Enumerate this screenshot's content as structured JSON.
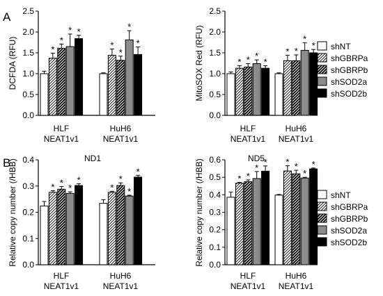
{
  "panel_letters": [
    "A",
    "B"
  ],
  "legend_entries": [
    {
      "label": "shNT",
      "fill": "white"
    },
    {
      "label": "shGBRPa",
      "fill": "hatch"
    },
    {
      "label": "shGBRPb",
      "fill": "hatch-dense"
    },
    {
      "label": "shSOD2a",
      "fill": "gray"
    },
    {
      "label": "shSOD2b",
      "fill": "black"
    }
  ],
  "colors": {
    "gray": "#8c8c8c",
    "black": "#000000",
    "white": "#ffffff"
  },
  "chart_data": [
    {
      "type": "bar",
      "title": "",
      "ylabel": "DCFDA (RFU)",
      "categories": [
        "HLF\nNEAT1v1",
        "HuH6\nNEAT1v1"
      ],
      "ylim": [
        0,
        2.5
      ],
      "yticks": [
        "0.0",
        "0.5",
        "1.0",
        "1.5",
        "2.0",
        "2.5"
      ],
      "series": [
        {
          "name": "shNT",
          "values": [
            1.0,
            1.0
          ],
          "errors": [
            0.06,
            0.02
          ],
          "sig": [
            false,
            false
          ]
        },
        {
          "name": "shGBRPa",
          "values": [
            1.37,
            1.44
          ],
          "errors": [
            0.12,
            0.15
          ],
          "sig": [
            true,
            true
          ]
        },
        {
          "name": "shGBRPb",
          "values": [
            1.61,
            1.32
          ],
          "errors": [
            0.1,
            0.1
          ],
          "sig": [
            true,
            true
          ]
        },
        {
          "name": "shSOD2a",
          "values": [
            1.65,
            1.81
          ],
          "errors": [
            0.3,
            0.22
          ],
          "sig": [
            true,
            true
          ]
        },
        {
          "name": "shSOD2b",
          "values": [
            1.84,
            1.46
          ],
          "errors": [
            0.08,
            0.18
          ],
          "sig": [
            true,
            true
          ]
        }
      ]
    },
    {
      "type": "bar",
      "title": "",
      "ylabel": "MitoSOX Red (RFU)",
      "categories": [
        "HLF\nNEAT1v1",
        "HuH6\nNEAT1v1"
      ],
      "ylim": [
        0,
        2.5
      ],
      "yticks": [
        "0.0",
        "0.5",
        "1.0",
        "1.5",
        "2.0",
        "2.5"
      ],
      "series": [
        {
          "name": "shNT",
          "values": [
            1.0,
            1.0
          ],
          "errors": [
            0.04,
            0.02
          ],
          "sig": [
            false,
            false
          ]
        },
        {
          "name": "shGBRPa",
          "values": [
            1.13,
            1.31
          ],
          "errors": [
            0.06,
            0.13
          ],
          "sig": [
            true,
            true
          ]
        },
        {
          "name": "shGBRPb",
          "values": [
            1.16,
            1.31
          ],
          "errors": [
            0.08,
            0.14
          ],
          "sig": [
            true,
            true
          ]
        },
        {
          "name": "shSOD2a",
          "values": [
            1.24,
            1.56
          ],
          "errors": [
            0.09,
            0.18
          ],
          "sig": [
            true,
            true
          ]
        },
        {
          "name": "shSOD2b",
          "values": [
            1.13,
            1.5
          ],
          "errors": [
            0.06,
            0.08
          ],
          "sig": [
            true,
            true
          ]
        }
      ]
    },
    {
      "type": "bar",
      "title": "ND1",
      "ylabel": "Relative copy number (/HBB)",
      "categories": [
        "HLF\nNEAT1v1",
        "HuH6\nNEAT1v1"
      ],
      "ylim": [
        0,
        0.4
      ],
      "yticks": [
        "0.0",
        "0.1",
        "0.2",
        "0.3",
        "0.4"
      ],
      "series": [
        {
          "name": "shNT",
          "values": [
            0.224,
            0.234
          ],
          "errors": [
            0.017,
            0.014
          ],
          "sig": [
            false,
            false
          ]
        },
        {
          "name": "shGBRPa",
          "values": [
            0.276,
            0.276
          ],
          "errors": [
            0.006,
            0.004
          ],
          "sig": [
            true,
            true
          ]
        },
        {
          "name": "shGBRPb",
          "values": [
            0.288,
            0.302
          ],
          "errors": [
            0.01,
            0.01
          ],
          "sig": [
            true,
            true
          ]
        },
        {
          "name": "shSOD2a",
          "values": [
            0.272,
            0.262
          ],
          "errors": [
            0.006,
            0.003
          ],
          "sig": [
            true,
            true
          ]
        },
        {
          "name": "shSOD2b",
          "values": [
            0.302,
            0.334
          ],
          "errors": [
            0.007,
            0.007
          ],
          "sig": [
            true,
            true
          ]
        }
      ]
    },
    {
      "type": "bar",
      "title": "ND5",
      "ylabel": "Relative copy number (/HBB)",
      "categories": [
        "HLF\nNEAT1v1",
        "HuH6\nNEAT1v1"
      ],
      "ylim": [
        0,
        0.6
      ],
      "yticks": [
        "0.0",
        "0.1",
        "0.2",
        "0.3",
        "0.4",
        "0.5",
        "0.6"
      ],
      "series": [
        {
          "name": "shNT",
          "values": [
            0.386,
            0.398
          ],
          "errors": [
            0.03,
            0.004
          ],
          "sig": [
            false,
            false
          ]
        },
        {
          "name": "shGBRPa",
          "values": [
            0.466,
            0.536
          ],
          "errors": [
            0.005,
            0.03
          ],
          "sig": [
            true,
            true
          ]
        },
        {
          "name": "shGBRPb",
          "values": [
            0.475,
            0.52
          ],
          "errors": [
            0.01,
            0.02
          ],
          "sig": [
            true,
            true
          ]
        },
        {
          "name": "shSOD2a",
          "values": [
            0.493,
            0.496
          ],
          "errors": [
            0.04,
            0.004
          ],
          "sig": [
            true,
            true
          ]
        },
        {
          "name": "shSOD2b",
          "values": [
            0.535,
            0.548
          ],
          "errors": [
            0.03,
            0.005
          ],
          "sig": [
            true,
            true
          ]
        }
      ]
    }
  ]
}
